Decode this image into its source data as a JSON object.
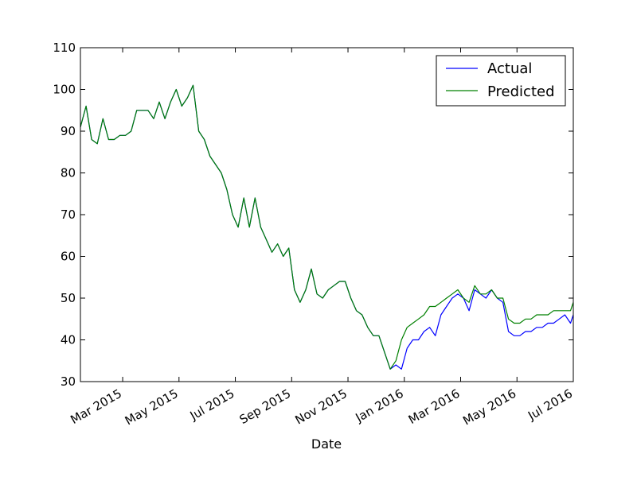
{
  "chart_data": {
    "type": "line",
    "title": "",
    "xlabel": "Date",
    "ylabel": "",
    "xlim": [
      0,
      17.5
    ],
    "ylim": [
      30,
      110
    ],
    "grid": false,
    "legend_position": "top-right",
    "y_ticks": [
      30,
      40,
      50,
      60,
      70,
      80,
      90,
      100,
      110
    ],
    "x_ticks": [
      {
        "label": "Mar 2015",
        "value": 1.5
      },
      {
        "label": "May 2015",
        "value": 3.5
      },
      {
        "label": "Jul 2015",
        "value": 5.5
      },
      {
        "label": "Sep 2015",
        "value": 7.5
      },
      {
        "label": "Nov 2015",
        "value": 9.5
      },
      {
        "label": "Jan 2016",
        "value": 11.5
      },
      {
        "label": "Mar 2016",
        "value": 13.5
      },
      {
        "label": "May 2016",
        "value": 15.5
      },
      {
        "label": "Jul 2016",
        "value": 17.5
      }
    ],
    "series": [
      {
        "name": "Actual",
        "color": "#0000ff",
        "x": [
          0,
          0.2,
          0.4,
          0.6,
          0.8,
          1.0,
          1.2,
          1.4,
          1.6,
          1.8,
          2.0,
          2.2,
          2.4,
          2.6,
          2.8,
          3.0,
          3.2,
          3.4,
          3.6,
          3.8,
          4.0,
          4.2,
          4.4,
          4.6,
          4.8,
          5.0,
          5.2,
          5.4,
          5.6,
          5.8,
          6.0,
          6.2,
          6.4,
          6.6,
          6.8,
          7.0,
          7.2,
          7.4,
          7.6,
          7.8,
          8.0,
          8.2,
          8.4,
          8.6,
          8.8,
          9.0,
          9.2,
          9.4,
          9.6,
          9.8,
          10.0,
          10.2,
          10.4,
          10.6,
          10.8,
          11.0,
          11.2,
          11.4,
          11.6,
          11.8,
          12.0,
          12.2,
          12.4,
          12.6,
          12.8,
          13.0,
          13.2,
          13.4,
          13.6,
          13.8,
          14.0,
          14.2,
          14.4,
          14.6,
          14.8,
          15.0,
          15.2,
          15.4,
          15.6,
          15.8,
          16.0,
          16.2,
          16.4,
          16.6,
          16.8,
          17.0,
          17.2,
          17.4,
          17.5
        ],
        "values": [
          91,
          96,
          88,
          87,
          93,
          88,
          88,
          89,
          89,
          90,
          95,
          95,
          95,
          93,
          97,
          93,
          97,
          100,
          96,
          98,
          101,
          90,
          88,
          84,
          82,
          80,
          76,
          70,
          67,
          74,
          67,
          74,
          67,
          64,
          61,
          63,
          60,
          62,
          52,
          49,
          52,
          57,
          51,
          50,
          52,
          53,
          54,
          54,
          50,
          47,
          46,
          43,
          41,
          41,
          37,
          33,
          34,
          33,
          38,
          40,
          40,
          42,
          43,
          41,
          46,
          48,
          50,
          51,
          50,
          47,
          52,
          51,
          50,
          52,
          50,
          49,
          42,
          41,
          41,
          42,
          42,
          43,
          43,
          44,
          44,
          45,
          46,
          44,
          46
        ]
      },
      {
        "name": "Predicted",
        "color": "#008000",
        "x": [
          0,
          0.2,
          0.4,
          0.6,
          0.8,
          1.0,
          1.2,
          1.4,
          1.6,
          1.8,
          2.0,
          2.2,
          2.4,
          2.6,
          2.8,
          3.0,
          3.2,
          3.4,
          3.6,
          3.8,
          4.0,
          4.2,
          4.4,
          4.6,
          4.8,
          5.0,
          5.2,
          5.4,
          5.6,
          5.8,
          6.0,
          6.2,
          6.4,
          6.6,
          6.8,
          7.0,
          7.2,
          7.4,
          7.6,
          7.8,
          8.0,
          8.2,
          8.4,
          8.6,
          8.8,
          9.0,
          9.2,
          9.4,
          9.6,
          9.8,
          10.0,
          10.2,
          10.4,
          10.6,
          10.8,
          11.0,
          11.2,
          11.4,
          11.6,
          11.8,
          12.0,
          12.2,
          12.4,
          12.6,
          12.8,
          13.0,
          13.2,
          13.4,
          13.6,
          13.8,
          14.0,
          14.2,
          14.4,
          14.6,
          14.8,
          15.0,
          15.2,
          15.4,
          15.6,
          15.8,
          16.0,
          16.2,
          16.4,
          16.6,
          16.8,
          17.0,
          17.2,
          17.4,
          17.5
        ],
        "values": [
          91,
          96,
          88,
          87,
          93,
          88,
          88,
          89,
          89,
          90,
          95,
          95,
          95,
          93,
          97,
          93,
          97,
          100,
          96,
          98,
          101,
          90,
          88,
          84,
          82,
          80,
          76,
          70,
          67,
          74,
          67,
          74,
          67,
          64,
          61,
          63,
          60,
          62,
          52,
          49,
          52,
          57,
          51,
          50,
          52,
          53,
          54,
          54,
          50,
          47,
          46,
          43,
          41,
          41,
          37,
          33,
          35,
          40,
          43,
          44,
          45,
          46,
          48,
          48,
          49,
          50,
          51,
          52,
          50,
          49,
          53,
          51,
          51,
          52,
          50,
          50,
          45,
          44,
          44,
          45,
          45,
          46,
          46,
          46,
          47,
          47,
          47,
          47,
          49
        ]
      }
    ]
  }
}
